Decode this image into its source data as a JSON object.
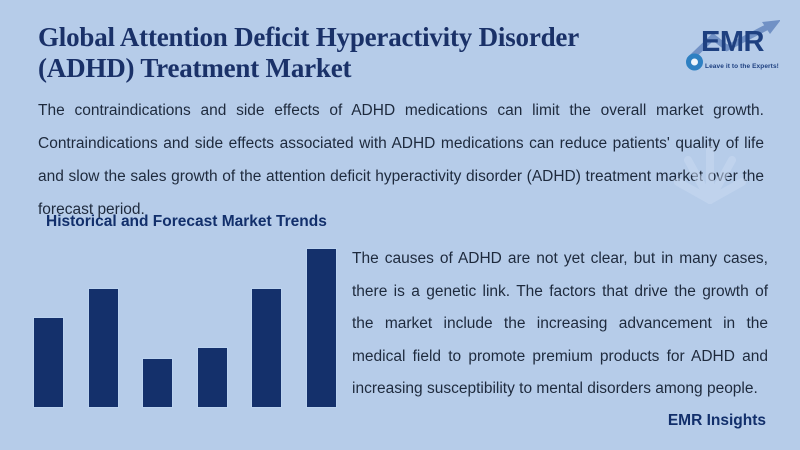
{
  "header": {
    "title_line1": "Global Attention Deficit Hyperactivity Disorder",
    "title_line2": "(ADHD) Treatment Market"
  },
  "logo": {
    "text": "EMR",
    "tagline": "Leave it to the Experts!"
  },
  "intro": {
    "text": "The contraindications and side effects of ADHD medications can limit the overall market growth. Contraindications and side effects associated with ADHD medications can reduce patients' quality of life and slow the sales growth of the attention deficit hyperactivity disorder (ADHD) treatment market over the forecast period."
  },
  "section": {
    "heading": "Historical and Forecast Market Trends"
  },
  "body": {
    "text": "The causes of ADHD are not yet clear, but in many cases, there is a genetic link. The factors that drive the growth of the market include the increasing advancement in the medical field to promote premium products for ADHD and increasing susceptibility to mental disorders among people."
  },
  "footer": {
    "label": "EMR Insights"
  },
  "colors": {
    "background": "#b6cce9",
    "title": "#1a3168",
    "body_text": "#1e2a3d",
    "bar": "#14306b",
    "logo_blue": "#1e4080",
    "logo_arrow": "#7191c5",
    "logo_circle": "#2e80c2"
  },
  "chart_data": {
    "type": "bar",
    "title": "Historical and Forecast Market Trends",
    "categories": [
      "",
      "",
      "",
      "",
      "",
      ""
    ],
    "values": [
      57,
      75,
      31,
      38,
      75,
      100
    ],
    "series_note": "unlabeled decorative trend bars; heights relative, tallest bar = 100",
    "xlabel": "",
    "ylabel": "",
    "ylim": [
      0,
      100
    ],
    "grid": false,
    "axes_visible": false,
    "legend": false,
    "bar_color": "#14306b"
  }
}
